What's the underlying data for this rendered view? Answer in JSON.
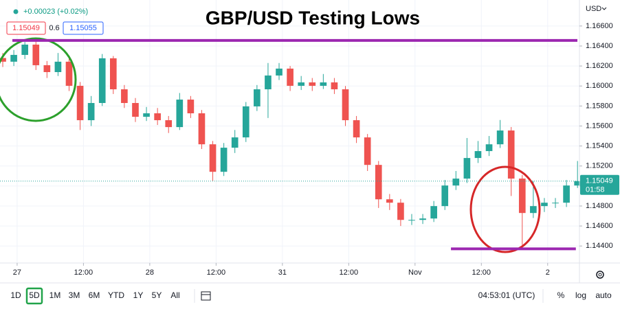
{
  "chart_data": {
    "type": "candlestick",
    "title": "GBP/USD Testing Lows",
    "currency": "USD",
    "quote": {
      "change": "+0.00023 (+0.02%)",
      "bid": "1.15049",
      "spread": "0.6",
      "ask": "1.15055"
    },
    "x": [
      -2.6,
      -0.6,
      1.4,
      3.4,
      5.4,
      7.4,
      9.4,
      11.4,
      13.4,
      15.4,
      17.4,
      19.4,
      21.4,
      23.4,
      25.4,
      27.4,
      29.4,
      31.4,
      33.4,
      35.4,
      37.4,
      39.4,
      41.4,
      43.4,
      45.4,
      47.4,
      49.4,
      51.4,
      53.4,
      55.4,
      57.4,
      59.4,
      61.4,
      63.4,
      65.4,
      67.4,
      69.4,
      71.4,
      73.4,
      75.4,
      77.4,
      79.4,
      81.4,
      83.4,
      85.4,
      87.4,
      89.4,
      91.4,
      93.4,
      95.4,
      97.4,
      99.4,
      101.4
    ],
    "open": [
      1.1628,
      1.16243,
      1.16311,
      1.16414,
      1.16208,
      1.16139,
      1.16243,
      1.16002,
      1.15658,
      1.1583,
      1.16277,
      1.15967,
      1.1583,
      1.15692,
      1.15727,
      1.15658,
      1.15589,
      1.15864,
      1.15727,
      1.15417,
      1.15142,
      1.15383,
      1.15486,
      1.15796,
      1.15967,
      1.16105,
      1.16174,
      1.16002,
      1.16036,
      1.16002,
      1.16036,
      1.15967,
      1.15658,
      1.15486,
      1.15211,
      1.14867,
      1.14833,
      1.14661,
      1.14661,
      1.14675,
      1.14799,
      1.15005,
      1.15074,
      1.1528,
      1.15349,
      1.15417,
      1.15555,
      1.15074,
      1.1473,
      1.14799,
      1.14833,
      1.14833,
      1.15005
    ],
    "high": [
      1.1633,
      1.1636,
      1.1644,
      1.1645,
      1.1625,
      1.1633,
      1.1628,
      1.1604,
      1.159,
      1.1632,
      1.163,
      1.1601,
      1.1588,
      1.1579,
      1.1578,
      1.157,
      1.1593,
      1.159,
      1.1576,
      1.1545,
      1.1543,
      1.1556,
      1.1584,
      1.1601,
      1.1623,
      1.1623,
      1.162,
      1.161,
      1.1608,
      1.1612,
      1.1608,
      1.16,
      1.157,
      1.1552,
      1.1525,
      1.1492,
      1.1487,
      1.1472,
      1.1472,
      1.1485,
      1.1506,
      1.1515,
      1.1548,
      1.1545,
      1.155,
      1.1566,
      1.1559,
      1.1511,
      1.1505,
      1.1488,
      1.1488,
      1.1506,
      1.1525
    ],
    "low": [
      1.1619,
      1.162,
      1.1627,
      1.1616,
      1.1608,
      1.161,
      1.1595,
      1.1556,
      1.156,
      1.158,
      1.1592,
      1.1578,
      1.1564,
      1.1565,
      1.1561,
      1.1553,
      1.1556,
      1.1568,
      1.1537,
      1.1505,
      1.151,
      1.1533,
      1.1544,
      1.1575,
      1.1568,
      1.1606,
      1.1595,
      1.1596,
      1.1595,
      1.1597,
      1.1592,
      1.156,
      1.1543,
      1.1515,
      1.1478,
      1.1476,
      1.146,
      1.1461,
      1.1462,
      1.1464,
      1.1476,
      1.1496,
      1.1503,
      1.1523,
      1.153,
      1.1538,
      1.149,
      1.1441,
      1.1468,
      1.1474,
      1.1478,
      1.1479,
      1.1498
    ],
    "close": [
      1.16243,
      1.16311,
      1.16414,
      1.16208,
      1.16139,
      1.16243,
      1.16002,
      1.15658,
      1.1583,
      1.16277,
      1.15967,
      1.1583,
      1.15692,
      1.15727,
      1.15658,
      1.15589,
      1.15864,
      1.15727,
      1.15417,
      1.15142,
      1.15383,
      1.15486,
      1.15796,
      1.15967,
      1.16105,
      1.16174,
      1.16002,
      1.16036,
      1.16002,
      1.16036,
      1.15967,
      1.15658,
      1.15486,
      1.15211,
      1.14867,
      1.14833,
      1.14661,
      1.14661,
      1.14675,
      1.14799,
      1.15005,
      1.15074,
      1.1528,
      1.15349,
      1.15417,
      1.15555,
      1.15074,
      1.1473,
      1.14799,
      1.14833,
      1.14833,
      1.15005,
      1.15049
    ],
    "up_color": "#26a69a",
    "down_color": "#ef5350",
    "xlim": [
      -3.1,
      101.75
    ],
    "xticks": [
      {
        "value": 0,
        "label": "27"
      },
      {
        "value": 12,
        "label": "12:00"
      },
      {
        "value": 24,
        "label": "28"
      },
      {
        "value": 36,
        "label": "12:00"
      },
      {
        "value": 48,
        "label": "31"
      },
      {
        "value": 60,
        "label": "12:00"
      },
      {
        "value": 72,
        "label": "Nov"
      },
      {
        "value": 84,
        "label": "12:00"
      },
      {
        "value": 96,
        "label": "2"
      }
    ],
    "ylim": [
      1.1423,
      1.1686
    ],
    "yticks": [
      {
        "value": 1.144,
        "label": "1.14400"
      },
      {
        "value": 1.146,
        "label": "1.14600"
      },
      {
        "value": 1.148,
        "label": "1.14800"
      },
      {
        "value": 1.15,
        "label": "1.15000"
      },
      {
        "value": 1.152,
        "label": "1.15200"
      },
      {
        "value": 1.154,
        "label": "1.15400"
      },
      {
        "value": 1.156,
        "label": "1.15600"
      },
      {
        "value": 1.158,
        "label": "1.15800"
      },
      {
        "value": 1.16,
        "label": "1.16000"
      },
      {
        "value": 1.162,
        "label": "1.16200"
      },
      {
        "value": 1.164,
        "label": "1.16400"
      },
      {
        "value": 1.166,
        "label": "1.16600"
      }
    ],
    "grid": true,
    "log_scale": false,
    "horizontal_lines": [
      {
        "value": 1.16456,
        "x": [
          -0.86,
          101.38
        ],
        "color": "#9c27b0"
      },
      {
        "value": 1.14372,
        "x": [
          78.5,
          101.1
        ],
        "color": "#9c27b0"
      }
    ],
    "last_price": {
      "value": 1.15049,
      "label": "1.15049",
      "countdown": "01:58",
      "color": "#26a69a"
    },
    "toolbar": {
      "ranges": [
        "1D",
        "5D",
        "1M",
        "3M",
        "6M",
        "YTD",
        "1Y",
        "5Y",
        "All"
      ],
      "selected_range": "5D",
      "time": "04:53:01 (UTC)",
      "options": [
        "%",
        "log",
        "auto"
      ]
    }
  }
}
